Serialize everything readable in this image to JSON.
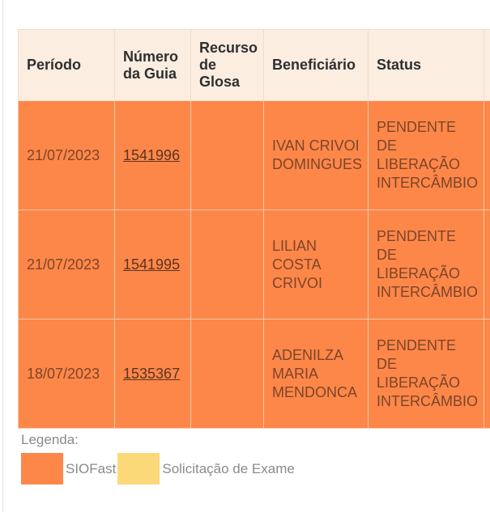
{
  "table": {
    "headers": [
      "Período",
      "Número da Guia",
      "Recurso de Glosa",
      "Beneficiário",
      "Status",
      ""
    ],
    "rows": [
      {
        "periodo": "21/07/2023",
        "guia": "1541996",
        "recurso": "",
        "beneficiario": "IVAN CRIVOI DOMINGUES",
        "status": "PENDENTE DE LIBERAÇÃO INTERCÂMBIO"
      },
      {
        "periodo": "21/07/2023",
        "guia": "1541995",
        "recurso": "",
        "beneficiario": "LILIAN COSTA CRIVOI",
        "status": "PENDENTE DE LIBERAÇÃO INTERCÂMBIO"
      },
      {
        "periodo": "18/07/2023",
        "guia": "1535367",
        "recurso": "",
        "beneficiario": "ADENILZA MARIA MENDONCA",
        "status": "PENDENTE DE LIBERAÇÃO INTERCÂMBIO"
      }
    ]
  },
  "legend": {
    "title": "Legenda:",
    "items": [
      {
        "label": "SIOFast",
        "color": "#fd8749"
      },
      {
        "label": "Solicitação de Exame",
        "color": "#fbd878"
      }
    ]
  }
}
